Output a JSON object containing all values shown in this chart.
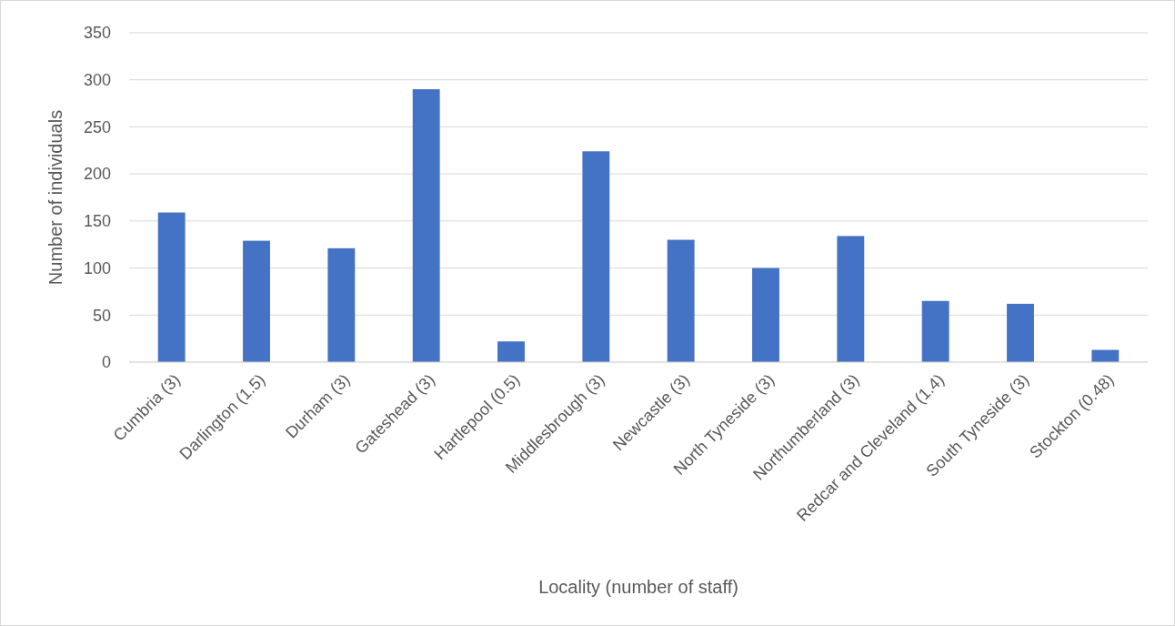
{
  "chart_data": {
    "type": "bar",
    "xlabel": "Locality (number of staff)",
    "ylabel": "Number of individuals",
    "categories": [
      "Cumbria (3)",
      "Darlington (1.5)",
      "Durham (3)",
      "Gateshead (3)",
      "Hartlepool (0.5)",
      "Middlesbrough (3)",
      "Newcastle (3)",
      "North Tyneside (3)",
      "Northumberland (3)",
      "Redcar and Cleveland (1.4)",
      "South Tyneside (3)",
      "Stockton (0.48)"
    ],
    "values": [
      159,
      129,
      121,
      290,
      22,
      224,
      130,
      100,
      134,
      65,
      62,
      13
    ],
    "color": "#4472c4",
    "ylim": [
      0,
      350
    ],
    "yticks": [
      0,
      50,
      100,
      150,
      200,
      250,
      300,
      350
    ],
    "grid": "y"
  }
}
